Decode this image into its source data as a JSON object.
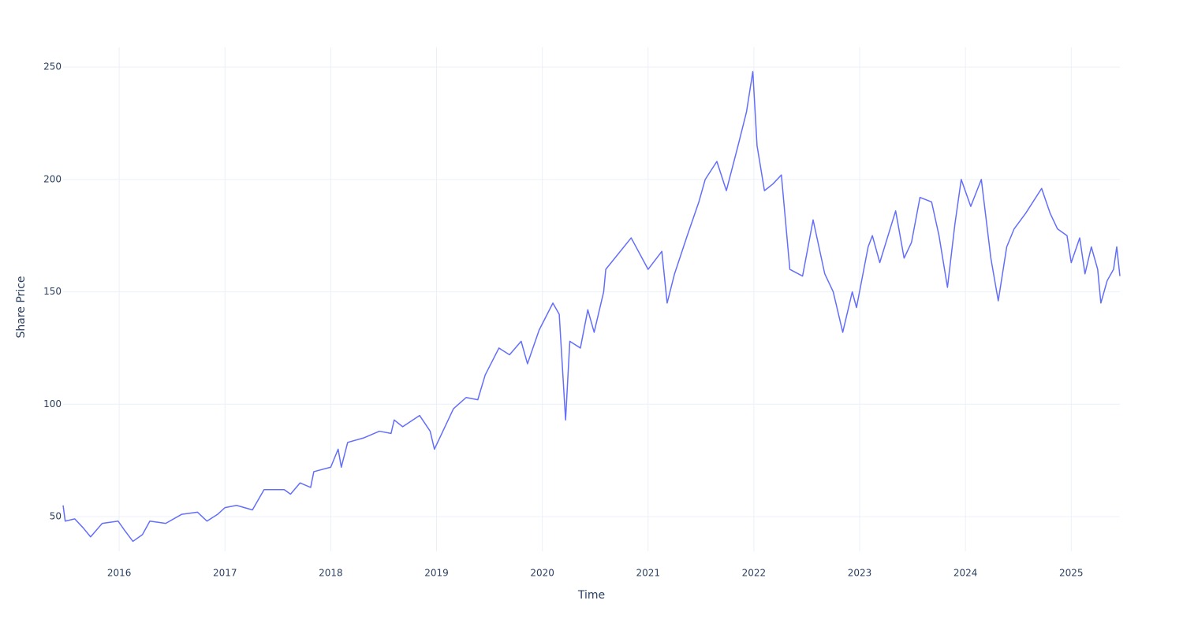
{
  "chart_data": {
    "type": "line",
    "xlabel": "Time",
    "ylabel": "Share Price",
    "x": [
      2015.47,
      2015.49,
      2015.58,
      2015.66,
      2015.73,
      2015.84,
      2015.99,
      2016.05,
      2016.13,
      2016.22,
      2016.29,
      2016.44,
      2016.59,
      2016.74,
      2016.83,
      2016.93,
      2017.0,
      2017.11,
      2017.26,
      2017.37,
      2017.56,
      2017.62,
      2017.71,
      2017.81,
      2017.84,
      2018.0,
      2018.07,
      2018.1,
      2018.16,
      2018.31,
      2018.46,
      2018.57,
      2018.6,
      2018.68,
      2018.84,
      2018.94,
      2018.98,
      2019.16,
      2019.28,
      2019.39,
      2019.46,
      2019.59,
      2019.69,
      2019.8,
      2019.86,
      2019.97,
      2020.1,
      2020.16,
      2020.22,
      2020.26,
      2020.36,
      2020.43,
      2020.49,
      2020.58,
      2020.6,
      2020.84,
      2021.0,
      2021.13,
      2021.18,
      2021.25,
      2021.37,
      2021.48,
      2021.54,
      2021.65,
      2021.74,
      2021.85,
      2021.93,
      2021.99,
      2022.03,
      2022.1,
      2022.18,
      2022.26,
      2022.34,
      2022.46,
      2022.56,
      2022.67,
      2022.75,
      2022.84,
      2022.93,
      2022.97,
      2023.08,
      2023.12,
      2023.19,
      2023.34,
      2023.42,
      2023.49,
      2023.57,
      2023.68,
      2023.75,
      2023.83,
      2023.9,
      2023.96,
      2024.05,
      2024.15,
      2024.24,
      2024.31,
      2024.39,
      2024.46,
      2024.57,
      2024.72,
      2024.8,
      2024.87,
      2024.96,
      2025.0,
      2025.08,
      2025.13,
      2025.19,
      2025.25,
      2025.28,
      2025.34,
      2025.4,
      2025.43,
      2025.46
    ],
    "values": [
      55,
      48,
      49,
      45,
      41,
      47,
      48,
      44,
      39,
      42,
      48,
      47,
      51,
      52,
      48,
      51,
      54,
      55,
      53,
      62,
      62,
      60,
      65,
      63,
      70,
      72,
      80,
      72,
      83,
      85,
      88,
      87,
      93,
      90,
      95,
      88,
      80,
      98,
      103,
      102,
      113,
      125,
      122,
      128,
      118,
      133,
      145,
      140,
      93,
      128,
      125,
      142,
      132,
      150,
      160,
      174,
      160,
      168,
      145,
      158,
      175,
      190,
      200,
      208,
      195,
      215,
      230,
      248,
      215,
      195,
      198,
      202,
      160,
      157,
      182,
      158,
      150,
      132,
      150,
      143,
      170,
      175,
      163,
      186,
      165,
      172,
      192,
      190,
      175,
      152,
      180,
      200,
      188,
      200,
      165,
      146,
      170,
      178,
      185,
      196,
      185,
      178,
      175,
      163,
      174,
      158,
      170,
      160,
      145,
      155,
      160,
      170,
      157
    ],
    "color": "#636efa",
    "xlim": [
      2015.47,
      2025.46
    ],
    "xticks": [
      2016,
      2017,
      2018,
      2019,
      2020,
      2021,
      2022,
      2023,
      2024,
      2025
    ],
    "ylim": [
      34.6,
      258.8
    ],
    "yticks": [
      50,
      100,
      150,
      200,
      250
    ],
    "grid": true
  }
}
